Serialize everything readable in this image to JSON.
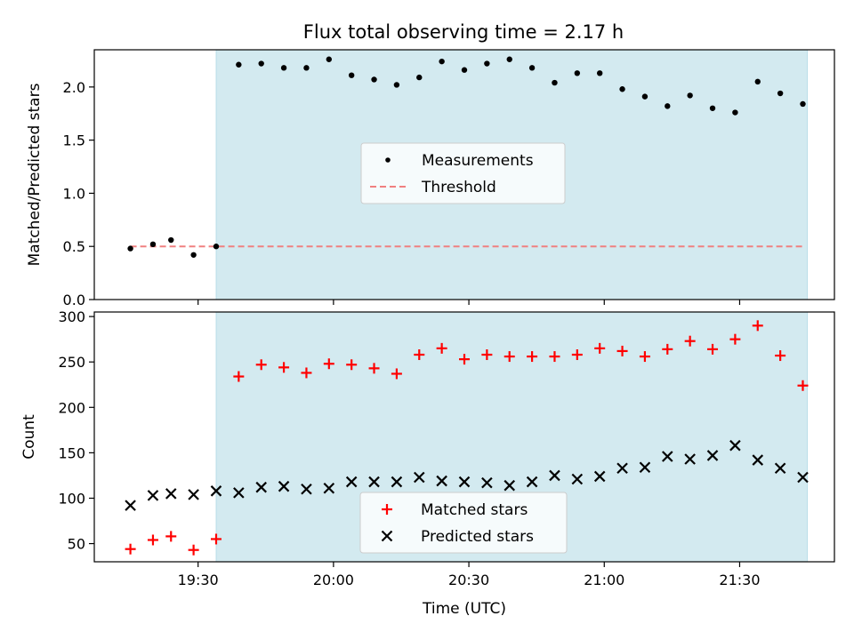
{
  "figure": {
    "title": "Flux total observing time = 2.17 h",
    "shaded_color": "#a8d5e2",
    "shaded_range": [
      "19:34",
      "21:45"
    ]
  },
  "chart_data": [
    {
      "type": "scatter",
      "panel": "top",
      "ylabel": "Matched/Predicted stars",
      "ylim": [
        0,
        2.35
      ],
      "yticks": [
        0.0,
        0.5,
        1.0,
        1.5,
        2.0
      ],
      "ytick_labels": [
        "0.0",
        "0.5",
        "1.0",
        "1.5",
        "2.0"
      ],
      "xlim": [
        "19:07",
        "21:51"
      ],
      "legend": "center",
      "series": [
        {
          "name": "Measurements",
          "color": "#000000",
          "marker": "dot",
          "x": [
            "19:15",
            "19:20",
            "19:24",
            "19:29",
            "19:34",
            "19:39",
            "19:44",
            "19:49",
            "19:54",
            "19:59",
            "20:04",
            "20:09",
            "20:14",
            "20:19",
            "20:24",
            "20:29",
            "20:34",
            "20:39",
            "20:44",
            "20:49",
            "20:54",
            "20:59",
            "21:04",
            "21:09",
            "21:14",
            "21:19",
            "21:24",
            "21:29",
            "21:34",
            "21:39",
            "21:44"
          ],
          "y": [
            0.48,
            0.52,
            0.56,
            0.42,
            0.5,
            2.21,
            2.22,
            2.18,
            2.18,
            2.26,
            2.11,
            2.07,
            2.02,
            2.09,
            2.24,
            2.16,
            2.22,
            2.26,
            2.18,
            2.04,
            2.13,
            2.13,
            1.98,
            1.91,
            1.82,
            1.92,
            1.8,
            1.76,
            2.05,
            1.94,
            1.84
          ]
        },
        {
          "name": "Threshold",
          "color": "#f08080",
          "style": "dashed",
          "x": [
            "19:15",
            "21:44"
          ],
          "y": [
            0.5,
            0.5
          ]
        }
      ]
    },
    {
      "type": "scatter",
      "panel": "bottom",
      "xlabel": "Time (UTC)",
      "ylabel": "Count",
      "ylim": [
        30,
        305
      ],
      "yticks": [
        50,
        100,
        150,
        200,
        250,
        300
      ],
      "ytick_labels": [
        "50",
        "100",
        "150",
        "200",
        "250",
        "300"
      ],
      "xlim": [
        "19:07",
        "21:51"
      ],
      "xticks": [
        "19:30",
        "20:00",
        "20:30",
        "21:00",
        "21:30"
      ],
      "xtick_labels": [
        "19:30",
        "20:00",
        "20:30",
        "21:00",
        "21:30"
      ],
      "legend": "lower center",
      "series": [
        {
          "name": "Matched stars",
          "color": "#ff0000",
          "marker": "plus",
          "x": [
            "19:15",
            "19:20",
            "19:24",
            "19:29",
            "19:34",
            "19:39",
            "19:44",
            "19:49",
            "19:54",
            "19:59",
            "20:04",
            "20:09",
            "20:14",
            "20:19",
            "20:24",
            "20:29",
            "20:34",
            "20:39",
            "20:44",
            "20:49",
            "20:54",
            "20:59",
            "21:04",
            "21:09",
            "21:14",
            "21:19",
            "21:24",
            "21:29",
            "21:34",
            "21:39",
            "21:44"
          ],
          "y": [
            44,
            54,
            58,
            43,
            55,
            234,
            247,
            244,
            238,
            248,
            247,
            243,
            237,
            258,
            265,
            253,
            258,
            256,
            256,
            256,
            258,
            265,
            262,
            256,
            264,
            273,
            264,
            275,
            290,
            257,
            224
          ]
        },
        {
          "name": "Predicted stars",
          "color": "#000000",
          "marker": "x",
          "x": [
            "19:15",
            "19:20",
            "19:24",
            "19:29",
            "19:34",
            "19:39",
            "19:44",
            "19:49",
            "19:54",
            "19:59",
            "20:04",
            "20:09",
            "20:14",
            "20:19",
            "20:24",
            "20:29",
            "20:34",
            "20:39",
            "20:44",
            "20:49",
            "20:54",
            "20:59",
            "21:04",
            "21:09",
            "21:14",
            "21:19",
            "21:24",
            "21:29",
            "21:34",
            "21:39",
            "21:44"
          ],
          "y": [
            92,
            103,
            105,
            104,
            108,
            106,
            112,
            113,
            110,
            111,
            118,
            118,
            118,
            123,
            119,
            118,
            117,
            114,
            118,
            125,
            121,
            124,
            133,
            134,
            146,
            143,
            147,
            158,
            142,
            133,
            123
          ]
        }
      ]
    }
  ]
}
